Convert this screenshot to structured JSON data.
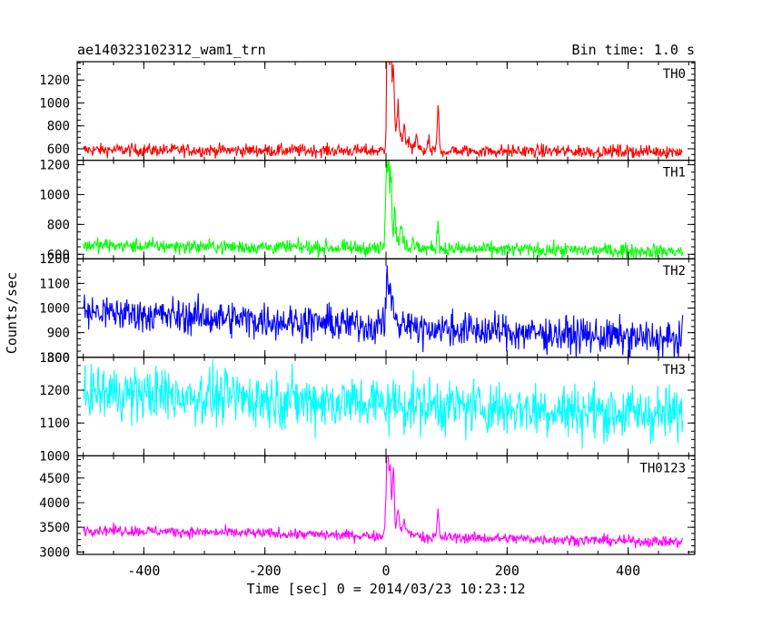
{
  "chart_data": {
    "type": "line",
    "title": "ae140323102312_wam1_trn",
    "bin_time_label": "Bin time: 1.0 s",
    "xlabel": "Time [sec] 0 = 2014/03/23 10:23:12",
    "ylabel": "Counts/sec",
    "x_range": [
      -510,
      510
    ],
    "x_data_range": [
      -500,
      490
    ],
    "x_ticks": [
      "-400",
      "-200",
      "0",
      "200",
      "400"
    ],
    "x_tick_values": [
      -400,
      -200,
      0,
      200,
      400
    ],
    "background": "#ffffff",
    "panels": [
      {
        "name": "TH0",
        "color": "#ff0000",
        "ylim": [
          500,
          1360
        ],
        "y_ticks": [
          {
            "v": 600,
            "t": "600"
          },
          {
            "v": 800,
            "t": "800"
          },
          {
            "v": 1000,
            "t": "1000"
          },
          {
            "v": 1200,
            "t": "1200"
          }
        ],
        "baseline_start": 590,
        "baseline_end": 575,
        "noise": 28,
        "peaks": [
          {
            "x": 2,
            "y": 1360
          },
          {
            "x": 5,
            "y": 1100
          },
          {
            "x": 8,
            "y": 1320
          },
          {
            "x": 12,
            "y": 1250
          },
          {
            "x": 20,
            "y": 960
          },
          {
            "x": 30,
            "y": 760
          },
          {
            "x": 50,
            "y": 700
          },
          {
            "x": 70,
            "y": 690
          },
          {
            "x": 86,
            "y": 1010
          }
        ]
      },
      {
        "name": "TH1",
        "color": "#00ff00",
        "ylim": [
          570,
          1230
        ],
        "y_ticks": [
          {
            "v": 600,
            "t": "600"
          },
          {
            "v": 800,
            "t": "800"
          },
          {
            "v": 1000,
            "t": "1000"
          },
          {
            "v": 1200,
            "t": "1200"
          }
        ],
        "baseline_start": 660,
        "baseline_end": 620,
        "noise": 24,
        "peaks": [
          {
            "x": 0,
            "y": 1110
          },
          {
            "x": 4,
            "y": 1200
          },
          {
            "x": 8,
            "y": 1120
          },
          {
            "x": 14,
            "y": 920
          },
          {
            "x": 25,
            "y": 780
          },
          {
            "x": 45,
            "y": 720
          },
          {
            "x": 86,
            "y": 870
          }
        ]
      },
      {
        "name": "TH2",
        "color": "#0000ff",
        "ylim": [
          800,
          1200
        ],
        "y_ticks": [
          {
            "v": 800,
            "t": "800"
          },
          {
            "v": 900,
            "t": "900"
          },
          {
            "v": 1000,
            "t": "1000"
          },
          {
            "v": 1100,
            "t": "1100"
          },
          {
            "v": 1200,
            "t": "1200"
          }
        ],
        "baseline_start": 985,
        "baseline_end": 870,
        "noise": 36,
        "peaks": [
          {
            "x": 2,
            "y": 1200
          },
          {
            "x": 6,
            "y": 1120
          },
          {
            "x": 10,
            "y": 1090
          },
          {
            "x": -5,
            "y": 1060
          }
        ]
      },
      {
        "name": "TH3",
        "color": "#00ffff",
        "ylim": [
          1000,
          1300
        ],
        "y_ticks": [
          {
            "v": 1000,
            "t": "1000"
          },
          {
            "v": 1100,
            "t": "1100"
          },
          {
            "v": 1200,
            "t": "1200"
          },
          {
            "v": 1300,
            "t": "1300"
          }
        ],
        "baseline_start": 1195,
        "baseline_end": 1125,
        "noise": 42,
        "peaks": []
      },
      {
        "name": "TH0123",
        "color": "#ff00ff",
        "ylim": [
          2950,
          4950
        ],
        "y_ticks": [
          {
            "v": 3000,
            "t": "3000"
          },
          {
            "v": 3500,
            "t": "3500"
          },
          {
            "v": 4000,
            "t": "4000"
          },
          {
            "v": 4500,
            "t": "4500"
          }
        ],
        "baseline_start": 3450,
        "baseline_end": 3200,
        "noise": 55,
        "peaks": [
          {
            "x": 0,
            "y": 4300
          },
          {
            "x": 3,
            "y": 4950
          },
          {
            "x": 7,
            "y": 4600
          },
          {
            "x": 12,
            "y": 4720
          },
          {
            "x": 20,
            "y": 3900
          },
          {
            "x": 30,
            "y": 3700
          },
          {
            "x": 86,
            "y": 4020
          }
        ]
      }
    ]
  }
}
